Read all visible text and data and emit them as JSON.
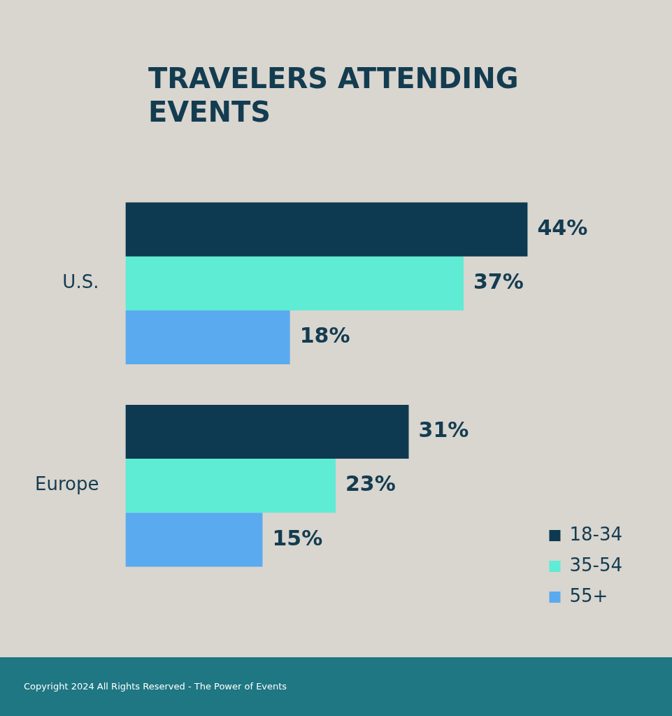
{
  "chart_data": {
    "type": "bar",
    "orientation": "horizontal",
    "title": "TRAVELERS ATTENDING EVENTS",
    "categories": [
      "U.S.",
      "Europe"
    ],
    "series": [
      {
        "name": "18-34",
        "color": "#0d3a50",
        "values": [
          44,
          31
        ],
        "value_labels": [
          "44%",
          "31%"
        ]
      },
      {
        "name": "35-54",
        "color": "#5eecd4",
        "values": [
          37,
          23
        ],
        "value_labels": [
          "37%",
          "23%"
        ]
      },
      {
        "name": "55+",
        "color": "#5aaaf0",
        "values": [
          18,
          15
        ],
        "value_labels": [
          "18%",
          "15%"
        ]
      }
    ],
    "legend": "right",
    "grid": false,
    "tick_labels": "y",
    "annotations": [
      "Copyright 2024 All Rights Reserved - The Power of Events"
    ]
  }
}
